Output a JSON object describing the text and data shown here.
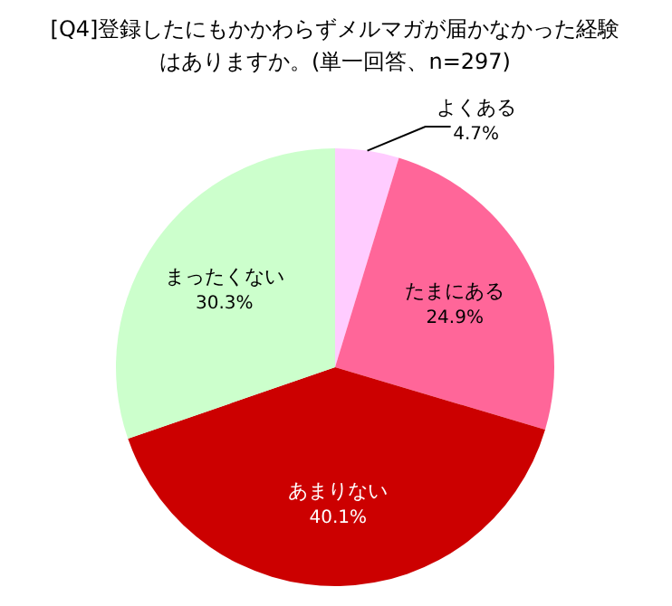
{
  "chart_data": {
    "type": "pie",
    "title": "[Q4]登録したにもかかわらずメルマガが届かなかった経験はありますか。(単一回答、n=297)",
    "categories": [
      "よくある",
      "たまにある",
      "あまりない",
      "まったくない"
    ],
    "values": [
      4.7,
      24.9,
      40.1,
      30.3
    ],
    "value_labels": [
      "4.7%",
      "24.9%",
      "40.1%",
      "30.3%"
    ],
    "colors": [
      "#ffccff",
      "#ff6699",
      "#cc0000",
      "#ccffcc"
    ],
    "legend": false
  }
}
